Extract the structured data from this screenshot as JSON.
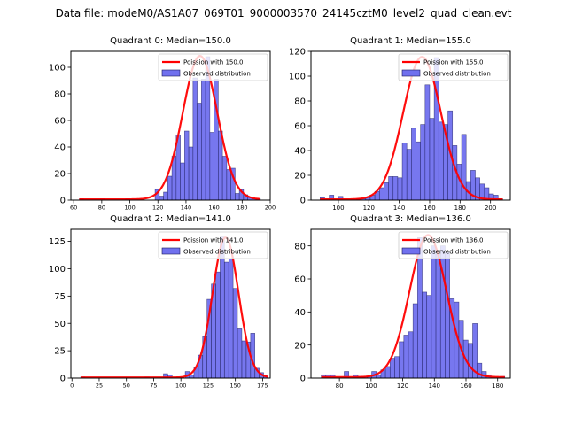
{
  "chart_data": {
    "suptitle": "Data file: modeM0/AS1A07_069T01_9000003570_24145cztM0_level2_quad_clean.evt",
    "panels": [
      {
        "type": "bar",
        "title": "Quadrant 0: Median=150.0",
        "xlim": [
          58,
          200
        ],
        "ylim": [
          0,
          112
        ],
        "xticks": [
          60,
          80,
          100,
          120,
          140,
          160,
          180,
          200
        ],
        "yticks": [
          0,
          20,
          40,
          60,
          80,
          100
        ],
        "bin_width": 3,
        "bins_start": [
          64,
          67,
          70,
          73,
          76,
          79,
          82,
          85,
          88,
          91,
          94,
          97,
          100,
          103,
          106,
          109,
          112,
          115,
          118,
          121,
          124,
          127,
          130,
          133,
          136,
          139,
          142,
          145,
          148,
          151,
          154,
          157,
          160,
          163,
          166,
          169,
          172,
          175,
          178,
          181,
          184,
          187,
          190
        ],
        "hist_values": [
          1,
          0,
          0,
          0,
          0,
          1,
          0,
          0,
          0,
          0,
          0,
          1,
          0,
          0,
          0,
          0,
          0,
          0,
          8,
          3,
          6,
          18,
          33,
          49,
          28,
          52,
          40,
          92,
          73,
          91,
          108,
          51,
          91,
          52,
          33,
          23,
          24,
          5,
          8,
          4,
          2,
          1,
          1
        ],
        "poisson_mean": 150.0,
        "poisson_peak": 108,
        "legend": [
          "Poission with 150.0",
          "Observed distribution"
        ]
      },
      {
        "type": "bar",
        "title": "Quadrant 1: Median=155.0",
        "xlim": [
          82,
          213
        ],
        "ylim": [
          0,
          120
        ],
        "xticks": [
          100,
          120,
          140,
          160,
          180,
          200
        ],
        "yticks": [
          0,
          20,
          40,
          60,
          80,
          100,
          120
        ],
        "bin_width": 3,
        "bins_start": [
          88,
          91,
          94,
          97,
          100,
          103,
          106,
          109,
          112,
          115,
          118,
          121,
          124,
          127,
          130,
          133,
          136,
          139,
          142,
          145,
          148,
          151,
          154,
          157,
          160,
          163,
          166,
          169,
          172,
          175,
          178,
          181,
          184,
          187,
          190,
          193,
          196,
          199,
          202,
          205
        ],
        "hist_values": [
          2,
          0,
          4,
          0,
          3,
          0,
          0,
          0,
          1,
          1,
          2,
          4,
          7,
          10,
          14,
          19,
          19,
          18,
          46,
          41,
          58,
          47,
          61,
          93,
          66,
          115,
          63,
          61,
          72,
          44,
          29,
          53,
          15,
          24,
          18,
          13,
          10,
          5,
          4,
          1
        ],
        "poisson_mean": 155.0,
        "poisson_peak": 115,
        "legend": [
          "Poission with 155.0",
          "Observed distribution"
        ]
      },
      {
        "type": "bar",
        "title": "Quadrant 2: Median=141.0",
        "xlim": [
          -1,
          182
        ],
        "ylim": [
          0,
          136
        ],
        "xticks": [
          0,
          25,
          50,
          75,
          100,
          125,
          150,
          175
        ],
        "yticks": [
          0,
          25,
          50,
          75,
          100,
          125
        ],
        "bin_width": 3.9,
        "bins_start": [
          8,
          67,
          84,
          88,
          104,
          108,
          112,
          116,
          120,
          124,
          128,
          132,
          136,
          140,
          144,
          148,
          152,
          156,
          160,
          164,
          168,
          172,
          176
        ],
        "hist_values": [
          1,
          1,
          4,
          3,
          6,
          3,
          10,
          21,
          38,
          72,
          86,
          97,
          129,
          106,
          109,
          82,
          45,
          34,
          33,
          41,
          9,
          5,
          3
        ],
        "poisson_mean": 141.0,
        "poisson_peak": 128,
        "legend": [
          "Poission with 141.0",
          "Observed distribution"
        ]
      },
      {
        "type": "bar",
        "title": "Quadrant 3: Median=136.0",
        "xlim": [
          62,
          188
        ],
        "ylim": [
          0,
          90
        ],
        "xticks": [
          80,
          100,
          120,
          140,
          160,
          180
        ],
        "yticks": [
          0,
          20,
          40,
          60,
          80
        ],
        "bin_width": 2.9,
        "bins_start": [
          68.5,
          71.4,
          74.3,
          77.2,
          80.1,
          83,
          85.9,
          88.8,
          91.7,
          94.6,
          97.5,
          100.4,
          103.3,
          106.2,
          109.1,
          112,
          114.9,
          117.8,
          120.7,
          123.6,
          126.5,
          129.4,
          132.3,
          135.2,
          138.1,
          141,
          143.9,
          146.8,
          149.7,
          152.6,
          155.5,
          158.4,
          161.3,
          164.2,
          167.1,
          170,
          172.9,
          175.8,
          178.7,
          181.6
        ],
        "hist_values": [
          2,
          2,
          2,
          0,
          0,
          4,
          0,
          2,
          1,
          1,
          1,
          4,
          2,
          5,
          7,
          12,
          13,
          22,
          26,
          28,
          45,
          85,
          52,
          50,
          80,
          75,
          80,
          76,
          48,
          46,
          35,
          23,
          21,
          33,
          9,
          4,
          2,
          0,
          0,
          1
        ],
        "poisson_mean": 136.0,
        "poisson_peak": 86,
        "legend": [
          "Poission with 136.0",
          "Observed distribution"
        ]
      }
    ]
  },
  "colors": {
    "bar_fill": "#7070ee",
    "bar_edge": "#1a1a5a",
    "poisson_line": "#ff0000"
  }
}
